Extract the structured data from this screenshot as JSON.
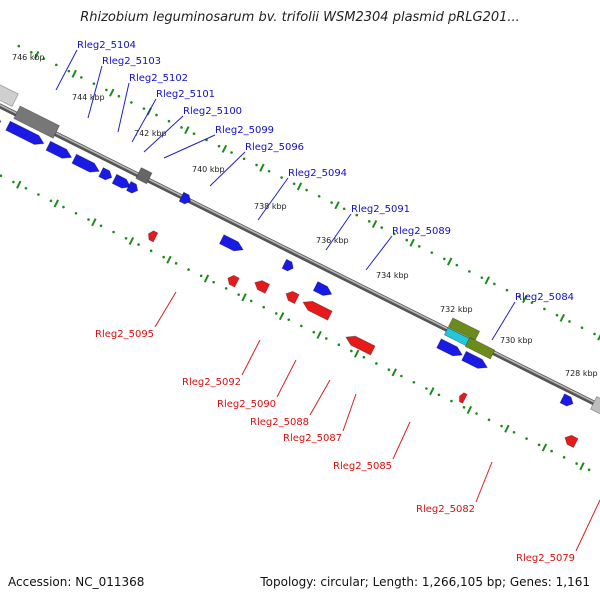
{
  "title": "Rhizobium leguminosarum bv. trifolii WSM2304 plasmid pRLG201...",
  "footer": {
    "accession": "Accession: NC_011368",
    "topology": "Topology: circular; Length: 1,266,105 bp; Genes: 1,161"
  },
  "colors": {
    "forward_gene": "#1a1ae6",
    "reverse_gene": "#e61a1a",
    "grey_feature": "#777777",
    "olive_feature": "#6b8c1a",
    "cyan_feature": "#22c8d8",
    "tick_green": "#1a8c1a"
  },
  "tick_labels": [
    "746 kbp",
    "744 kbp",
    "742 kbp",
    "740 kbp",
    "738 kbp",
    "736 kbp",
    "734 kbp",
    "732 kbp",
    "730 kbp",
    "728 kbp"
  ],
  "genes_forward": [
    "Rleg2_5104",
    "Rleg2_5103",
    "Rleg2_5102",
    "Rleg2_5101",
    "Rleg2_5100",
    "Rleg2_5099",
    "Rleg2_5096",
    "Rleg2_5094",
    "Rleg2_5091",
    "Rleg2_5089",
    "Rleg2_5084"
  ],
  "genes_reverse": [
    "Rleg2_5095",
    "Rleg2_5092",
    "Rleg2_5090",
    "Rleg2_5088",
    "Rleg2_5087",
    "Rleg2_5085",
    "Rleg2_5082",
    "Rleg2_5079"
  ]
}
